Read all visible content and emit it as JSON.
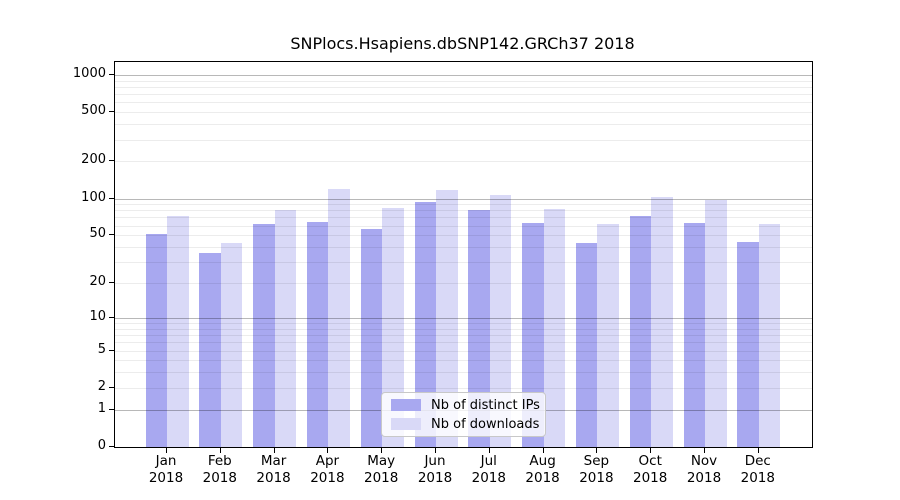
{
  "chart_data": {
    "type": "bar",
    "title": "SNPlocs.Hsapiens.dbSNP142.GRCh37 2018",
    "categories": [
      {
        "month": "Jan",
        "year": "2018"
      },
      {
        "month": "Feb",
        "year": "2018"
      },
      {
        "month": "Mar",
        "year": "2018"
      },
      {
        "month": "Apr",
        "year": "2018"
      },
      {
        "month": "May",
        "year": "2018"
      },
      {
        "month": "Jun",
        "year": "2018"
      },
      {
        "month": "Jul",
        "year": "2018"
      },
      {
        "month": "Aug",
        "year": "2018"
      },
      {
        "month": "Sep",
        "year": "2018"
      },
      {
        "month": "Oct",
        "year": "2018"
      },
      {
        "month": "Nov",
        "year": "2018"
      },
      {
        "month": "Dec",
        "year": "2018"
      }
    ],
    "series": [
      {
        "name": "Nb of distinct IPs",
        "color": "#a8a8f0",
        "values": [
          51,
          36,
          62,
          64,
          56,
          94,
          80,
          63,
          43,
          72,
          63,
          44
        ]
      },
      {
        "name": "Nb of downloads",
        "color": "#d9d9f7",
        "values": [
          72,
          43,
          80,
          120,
          83,
          117,
          107,
          82,
          62,
          102,
          97,
          62
        ]
      }
    ],
    "y_ticks": [
      1000,
      500,
      200,
      100,
      50,
      20,
      10,
      5,
      2,
      1,
      0
    ],
    "ylim": [
      0,
      1273
    ],
    "y_scale": "log1p",
    "grid": "on",
    "legend_position": "inside-bottom-center",
    "axis_color": "#000000",
    "grid_minor_color": "#ececec",
    "grid_major_color": "#b5b5b5",
    "background_color": "#ffffff"
  }
}
